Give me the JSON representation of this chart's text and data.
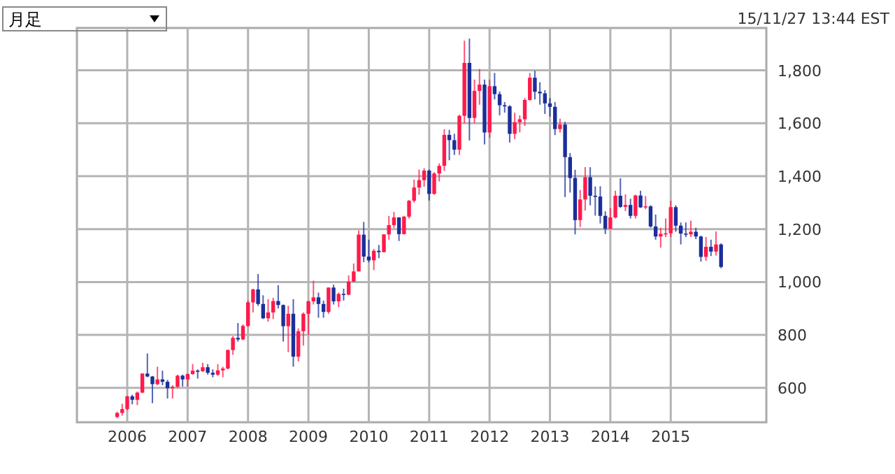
{
  "chart_data": {
    "type": "candlestick",
    "annotations": [
      "月足",
      "15/11/27 13:44 EST"
    ],
    "xlim": [
      "2005-03",
      "2016-08"
    ],
    "xticks": [
      {
        "value": "2006",
        "label": "2006"
      },
      {
        "value": "2007",
        "label": "2007"
      },
      {
        "value": "2008",
        "label": "2008"
      },
      {
        "value": "2009",
        "label": "2009"
      },
      {
        "value": "2010",
        "label": "2010"
      },
      {
        "value": "2011",
        "label": "2011"
      },
      {
        "value": "2012",
        "label": "2012"
      },
      {
        "value": "2013",
        "label": "2013"
      },
      {
        "value": "2014",
        "label": "2014"
      },
      {
        "value": "2015",
        "label": "2015"
      }
    ],
    "ylim": [
      470,
      1960
    ],
    "yticks": [
      600,
      800,
      {
        "value": 1000,
        "label": "1,000"
      },
      {
        "value": 1200,
        "label": "1,200"
      },
      {
        "value": 1400,
        "label": "1,400"
      },
      {
        "value": 1600,
        "label": "1,600"
      },
      {
        "value": 1800,
        "label": "1,800"
      }
    ],
    "grid": true,
    "x": [
      "2005-11",
      "2005-12",
      "2006-01",
      "2006-02",
      "2006-03",
      "2006-04",
      "2006-05",
      "2006-06",
      "2006-07",
      "2006-08",
      "2006-09",
      "2006-10",
      "2006-11",
      "2006-12",
      "2007-01",
      "2007-02",
      "2007-03",
      "2007-04",
      "2007-05",
      "2007-06",
      "2007-07",
      "2007-08",
      "2007-09",
      "2007-10",
      "2007-11",
      "2007-12",
      "2008-01",
      "2008-02",
      "2008-03",
      "2008-04",
      "2008-05",
      "2008-06",
      "2008-07",
      "2008-08",
      "2008-09",
      "2008-10",
      "2008-11",
      "2008-12",
      "2009-01",
      "2009-02",
      "2009-03",
      "2009-04",
      "2009-05",
      "2009-06",
      "2009-07",
      "2009-08",
      "2009-09",
      "2009-10",
      "2009-11",
      "2009-12",
      "2010-01",
      "2010-02",
      "2010-03",
      "2010-04",
      "2010-05",
      "2010-06",
      "2010-07",
      "2010-08",
      "2010-09",
      "2010-10",
      "2010-11",
      "2010-12",
      "2011-01",
      "2011-02",
      "2011-03",
      "2011-04",
      "2011-05",
      "2011-06",
      "2011-07",
      "2011-08",
      "2011-09",
      "2011-10",
      "2011-11",
      "2011-12",
      "2012-01",
      "2012-02",
      "2012-03",
      "2012-04",
      "2012-05",
      "2012-06",
      "2012-07",
      "2012-08",
      "2012-09",
      "2012-10",
      "2012-11",
      "2012-12",
      "2013-01",
      "2013-02",
      "2013-03",
      "2013-04",
      "2013-05",
      "2013-06",
      "2013-07",
      "2013-08",
      "2013-09",
      "2013-10",
      "2013-11",
      "2013-12",
      "2014-01",
      "2014-02",
      "2014-03",
      "2014-04",
      "2014-05",
      "2014-06",
      "2014-07",
      "2014-08",
      "2014-09",
      "2014-10",
      "2014-11",
      "2014-12",
      "2015-01",
      "2015-02",
      "2015-03",
      "2015-04",
      "2015-05",
      "2015-06",
      "2015-07",
      "2015-08",
      "2015-09",
      "2015-10",
      "2015-11"
    ],
    "ohlc": [
      [
        490,
        510,
        485,
        505
      ],
      [
        505,
        540,
        495,
        520
      ],
      [
        520,
        570,
        515,
        568
      ],
      [
        568,
        574,
        538,
        555
      ],
      [
        555,
        586,
        535,
        582
      ],
      [
        582,
        655,
        580,
        654
      ],
      [
        654,
        730,
        640,
        643
      ],
      [
        643,
        645,
        542,
        614
      ],
      [
        614,
        680,
        610,
        632
      ],
      [
        632,
        665,
        610,
        623
      ],
      [
        623,
        630,
        560,
        599
      ],
      [
        599,
        610,
        560,
        604
      ],
      [
        604,
        650,
        600,
        646
      ],
      [
        646,
        650,
        605,
        632
      ],
      [
        632,
        655,
        605,
        652
      ],
      [
        652,
        690,
        650,
        665
      ],
      [
        665,
        670,
        635,
        663
      ],
      [
        663,
        695,
        660,
        678
      ],
      [
        678,
        690,
        650,
        657
      ],
      [
        657,
        670,
        640,
        650
      ],
      [
        650,
        690,
        645,
        666
      ],
      [
        666,
        680,
        640,
        673
      ],
      [
        673,
        745,
        670,
        743
      ],
      [
        743,
        795,
        725,
        789
      ],
      [
        789,
        845,
        775,
        783
      ],
      [
        783,
        840,
        780,
        834
      ],
      [
        834,
        930,
        830,
        923
      ],
      [
        923,
        975,
        885,
        972
      ],
      [
        972,
        1030,
        910,
        917
      ],
      [
        917,
        950,
        860,
        863
      ],
      [
        863,
        935,
        850,
        885
      ],
      [
        885,
        940,
        860,
        928
      ],
      [
        928,
        988,
        900,
        913
      ],
      [
        913,
        915,
        775,
        833
      ],
      [
        833,
        910,
        735,
        880
      ],
      [
        880,
        935,
        680,
        718
      ],
      [
        718,
        825,
        700,
        814
      ],
      [
        814,
        885,
        760,
        880
      ],
      [
        880,
        930,
        800,
        927
      ],
      [
        927,
        1005,
        915,
        942
      ],
      [
        942,
        960,
        865,
        917
      ],
      [
        917,
        930,
        865,
        887
      ],
      [
        887,
        980,
        880,
        979
      ],
      [
        979,
        990,
        915,
        927
      ],
      [
        927,
        960,
        905,
        955
      ],
      [
        955,
        975,
        930,
        952
      ],
      [
        952,
        1025,
        950,
        1001
      ],
      [
        1001,
        1070,
        1000,
        1040
      ],
      [
        1040,
        1195,
        1040,
        1179
      ],
      [
        1179,
        1227,
        1075,
        1096
      ],
      [
        1096,
        1160,
        1075,
        1082
      ],
      [
        1082,
        1125,
        1045,
        1118
      ],
      [
        1118,
        1140,
        1090,
        1113
      ],
      [
        1113,
        1180,
        1112,
        1180
      ],
      [
        1180,
        1250,
        1160,
        1215
      ],
      [
        1215,
        1265,
        1205,
        1244
      ],
      [
        1244,
        1245,
        1155,
        1181
      ],
      [
        1181,
        1250,
        1180,
        1247
      ],
      [
        1247,
        1310,
        1240,
        1307
      ],
      [
        1307,
        1387,
        1300,
        1357
      ],
      [
        1357,
        1425,
        1330,
        1385
      ],
      [
        1385,
        1430,
        1360,
        1421
      ],
      [
        1421,
        1425,
        1308,
        1333
      ],
      [
        1333,
        1415,
        1330,
        1410
      ],
      [
        1410,
        1448,
        1380,
        1439
      ],
      [
        1439,
        1577,
        1420,
        1556
      ],
      [
        1556,
        1575,
        1460,
        1536
      ],
      [
        1536,
        1560,
        1480,
        1500
      ],
      [
        1500,
        1632,
        1480,
        1628
      ],
      [
        1628,
        1912,
        1600,
        1828
      ],
      [
        1828,
        1920,
        1535,
        1620
      ],
      [
        1620,
        1765,
        1600,
        1722
      ],
      [
        1722,
        1805,
        1670,
        1746
      ],
      [
        1746,
        1765,
        1520,
        1565
      ],
      [
        1565,
        1765,
        1545,
        1740
      ],
      [
        1740,
        1790,
        1690,
        1710
      ],
      [
        1710,
        1720,
        1630,
        1668
      ],
      [
        1668,
        1680,
        1640,
        1664
      ],
      [
        1664,
        1668,
        1527,
        1560
      ],
      [
        1560,
        1640,
        1540,
        1604
      ],
      [
        1604,
        1630,
        1565,
        1615
      ],
      [
        1615,
        1695,
        1590,
        1688
      ],
      [
        1688,
        1790,
        1685,
        1772
      ],
      [
        1772,
        1798,
        1690,
        1719
      ],
      [
        1719,
        1755,
        1670,
        1713
      ],
      [
        1713,
        1725,
        1635,
        1675
      ],
      [
        1675,
        1695,
        1625,
        1662
      ],
      [
        1662,
        1680,
        1555,
        1578
      ],
      [
        1578,
        1617,
        1565,
        1595
      ],
      [
        1595,
        1605,
        1321,
        1472
      ],
      [
        1472,
        1487,
        1338,
        1393
      ],
      [
        1393,
        1424,
        1180,
        1234
      ],
      [
        1234,
        1348,
        1208,
        1312
      ],
      [
        1312,
        1434,
        1270,
        1396
      ],
      [
        1396,
        1434,
        1290,
        1326
      ],
      [
        1326,
        1361,
        1251,
        1323
      ],
      [
        1323,
        1362,
        1221,
        1250
      ],
      [
        1250,
        1267,
        1181,
        1201
      ],
      [
        1201,
        1280,
        1200,
        1244
      ],
      [
        1244,
        1345,
        1240,
        1326
      ],
      [
        1326,
        1392,
        1280,
        1284
      ],
      [
        1284,
        1331,
        1268,
        1291
      ],
      [
        1291,
        1315,
        1240,
        1250
      ],
      [
        1250,
        1330,
        1240,
        1327
      ],
      [
        1327,
        1345,
        1280,
        1282
      ],
      [
        1282,
        1325,
        1275,
        1286
      ],
      [
        1286,
        1290,
        1205,
        1210
      ],
      [
        1210,
        1255,
        1160,
        1172
      ],
      [
        1172,
        1205,
        1130,
        1182
      ],
      [
        1182,
        1240,
        1170,
        1184
      ],
      [
        1184,
        1307,
        1170,
        1283
      ],
      [
        1283,
        1290,
        1190,
        1213
      ],
      [
        1213,
        1225,
        1142,
        1183
      ],
      [
        1183,
        1225,
        1170,
        1180
      ],
      [
        1180,
        1232,
        1170,
        1190
      ],
      [
        1190,
        1205,
        1162,
        1172
      ],
      [
        1172,
        1175,
        1077,
        1095
      ],
      [
        1095,
        1170,
        1080,
        1133
      ],
      [
        1133,
        1160,
        1098,
        1115
      ],
      [
        1115,
        1191,
        1100,
        1142
      ],
      [
        1142,
        1146,
        1052,
        1057
      ]
    ],
    "colors": [
      "#ff1a4b",
      "#ff1a4b",
      "#ff1a4b",
      "#1a2f9a",
      "#ff1a4b",
      "#ff1a4b",
      "#1a2f9a",
      "#1a2f9a",
      "#ff1a4b",
      "#1a2f9a",
      "#1a2f9a",
      "#ff1a4b",
      "#ff1a4b",
      "#1a2f9a",
      "#ff1a4b",
      "#ff1a4b",
      "#1a2f9a",
      "#ff1a4b",
      "#1a2f9a",
      "#1a2f9a",
      "#ff1a4b",
      "#ff1a4b",
      "#ff1a4b",
      "#ff1a4b",
      "#1a2f9a",
      "#ff1a4b",
      "#ff1a4b",
      "#ff1a4b",
      "#1a2f9a",
      "#1a2f9a",
      "#ff1a4b",
      "#ff1a4b",
      "#1a2f9a",
      "#1a2f9a",
      "#ff1a4b",
      "#1a2f9a",
      "#ff1a4b",
      "#ff1a4b",
      "#ff1a4b",
      "#ff1a4b",
      "#1a2f9a",
      "#1a2f9a",
      "#ff1a4b",
      "#1a2f9a",
      "#ff1a4b",
      "#1a2f9a",
      "#ff1a4b",
      "#ff1a4b",
      "#ff1a4b",
      "#1a2f9a",
      "#1a2f9a",
      "#ff1a4b",
      "#1a2f9a",
      "#ff1a4b",
      "#ff1a4b",
      "#ff1a4b",
      "#1a2f9a",
      "#ff1a4b",
      "#ff1a4b",
      "#ff1a4b",
      "#ff1a4b",
      "#ff1a4b",
      "#1a2f9a",
      "#ff1a4b",
      "#ff1a4b",
      "#ff1a4b",
      "#1a2f9a",
      "#1a2f9a",
      "#ff1a4b",
      "#ff1a4b",
      "#1a2f9a",
      "#ff1a4b",
      "#ff1a4b",
      "#1a2f9a",
      "#ff1a4b",
      "#1a2f9a",
      "#1a2f9a",
      "#1a2f9a",
      "#1a2f9a",
      "#ff1a4b",
      "#ff1a4b",
      "#ff1a4b",
      "#ff1a4b",
      "#1a2f9a",
      "#1a2f9a",
      "#1a2f9a",
      "#1a2f9a",
      "#1a2f9a",
      "#ff1a4b",
      "#1a2f9a",
      "#1a2f9a",
      "#1a2f9a",
      "#ff1a4b",
      "#ff1a4b",
      "#1a2f9a",
      "#1a2f9a",
      "#1a2f9a",
      "#1a2f9a",
      "#ff1a4b",
      "#ff1a4b",
      "#1a2f9a",
      "#ff1a4b",
      "#1a2f9a",
      "#ff1a4b",
      "#1a2f9a",
      "#ff1a4b",
      "#1a2f9a",
      "#1a2f9a",
      "#ff1a4b",
      "#ff1a4b",
      "#ff1a4b",
      "#1a2f9a",
      "#1a2f9a",
      "#1a2f9a",
      "#ff1a4b",
      "#1a2f9a",
      "#1a2f9a",
      "#ff1a4b",
      "#1a2f9a",
      "#ff1a4b",
      "#1a2f9a"
    ]
  }
}
